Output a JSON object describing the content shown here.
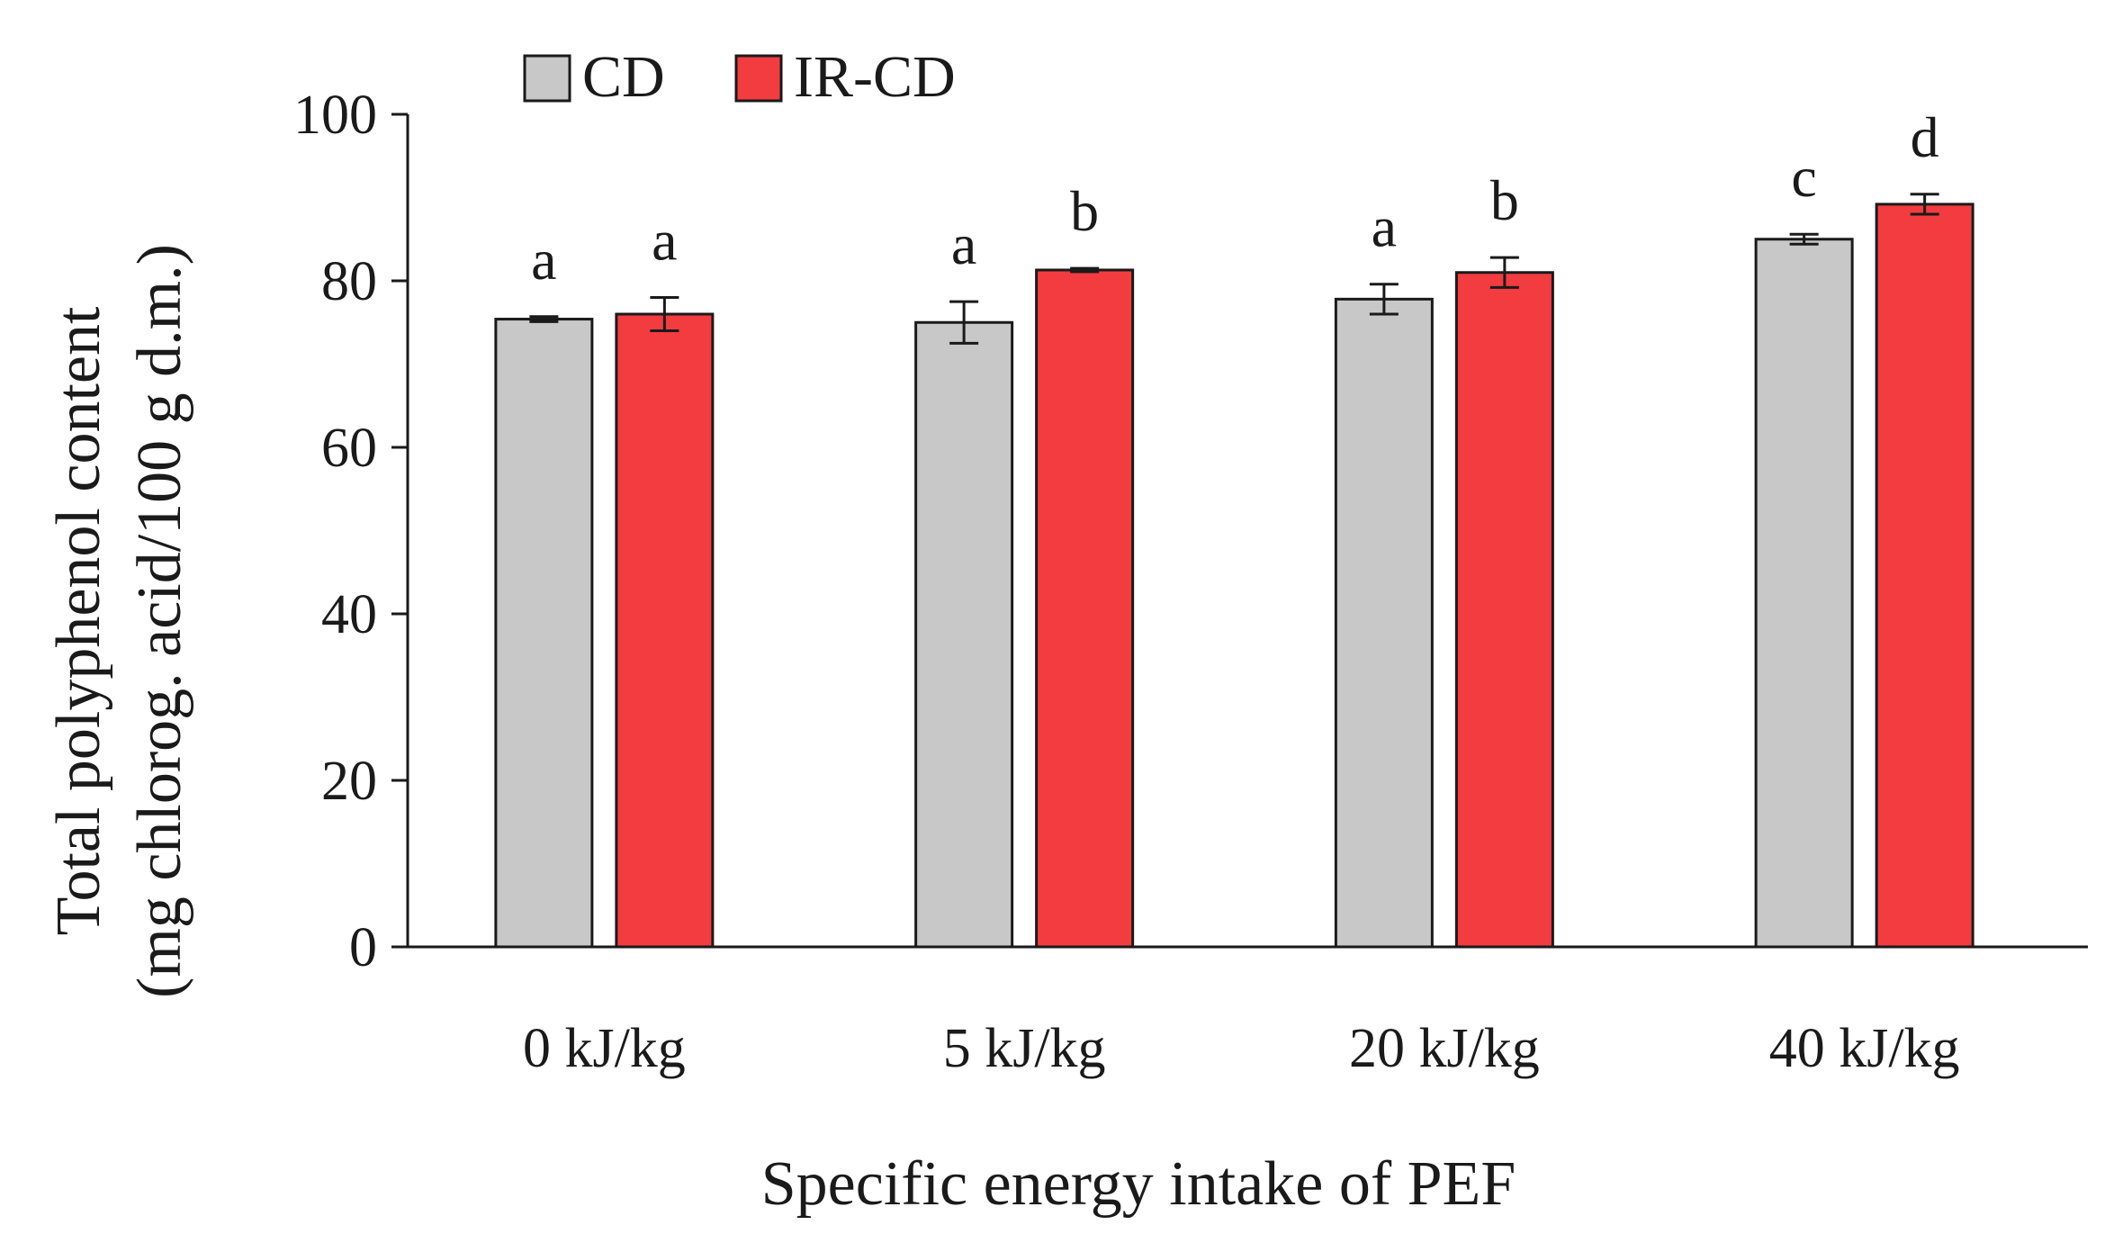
{
  "chart_data": {
    "type": "bar",
    "title": "",
    "xlabel": "Specific energy intake of PEF",
    "ylabel_line1": "Total polyphenol content",
    "ylabel_line2": "(mg chlorog. acid/100 g d.m.)",
    "ylim": [
      0,
      100
    ],
    "yticks": [
      0,
      20,
      40,
      60,
      80,
      100
    ],
    "grid": false,
    "legend_position": "top-left",
    "categories": [
      "0 kJ/kg",
      "5 kJ/kg",
      "20 kJ/kg",
      "40 kJ/kg"
    ],
    "series": [
      {
        "name": "CD",
        "color": "#c8c8c8",
        "values": [
          75.4,
          75.0,
          77.8,
          85.0
        ],
        "errors": [
          0.3,
          2.5,
          1.8,
          0.6
        ],
        "labels": [
          "a",
          "a",
          "a",
          "c"
        ]
      },
      {
        "name": "IR-CD",
        "color": "#f23c40",
        "values": [
          76.0,
          81.3,
          81.0,
          89.2
        ],
        "errors": [
          2.0,
          0.2,
          1.8,
          1.2
        ],
        "labels": [
          "a",
          "b",
          "b",
          "d"
        ]
      }
    ]
  }
}
